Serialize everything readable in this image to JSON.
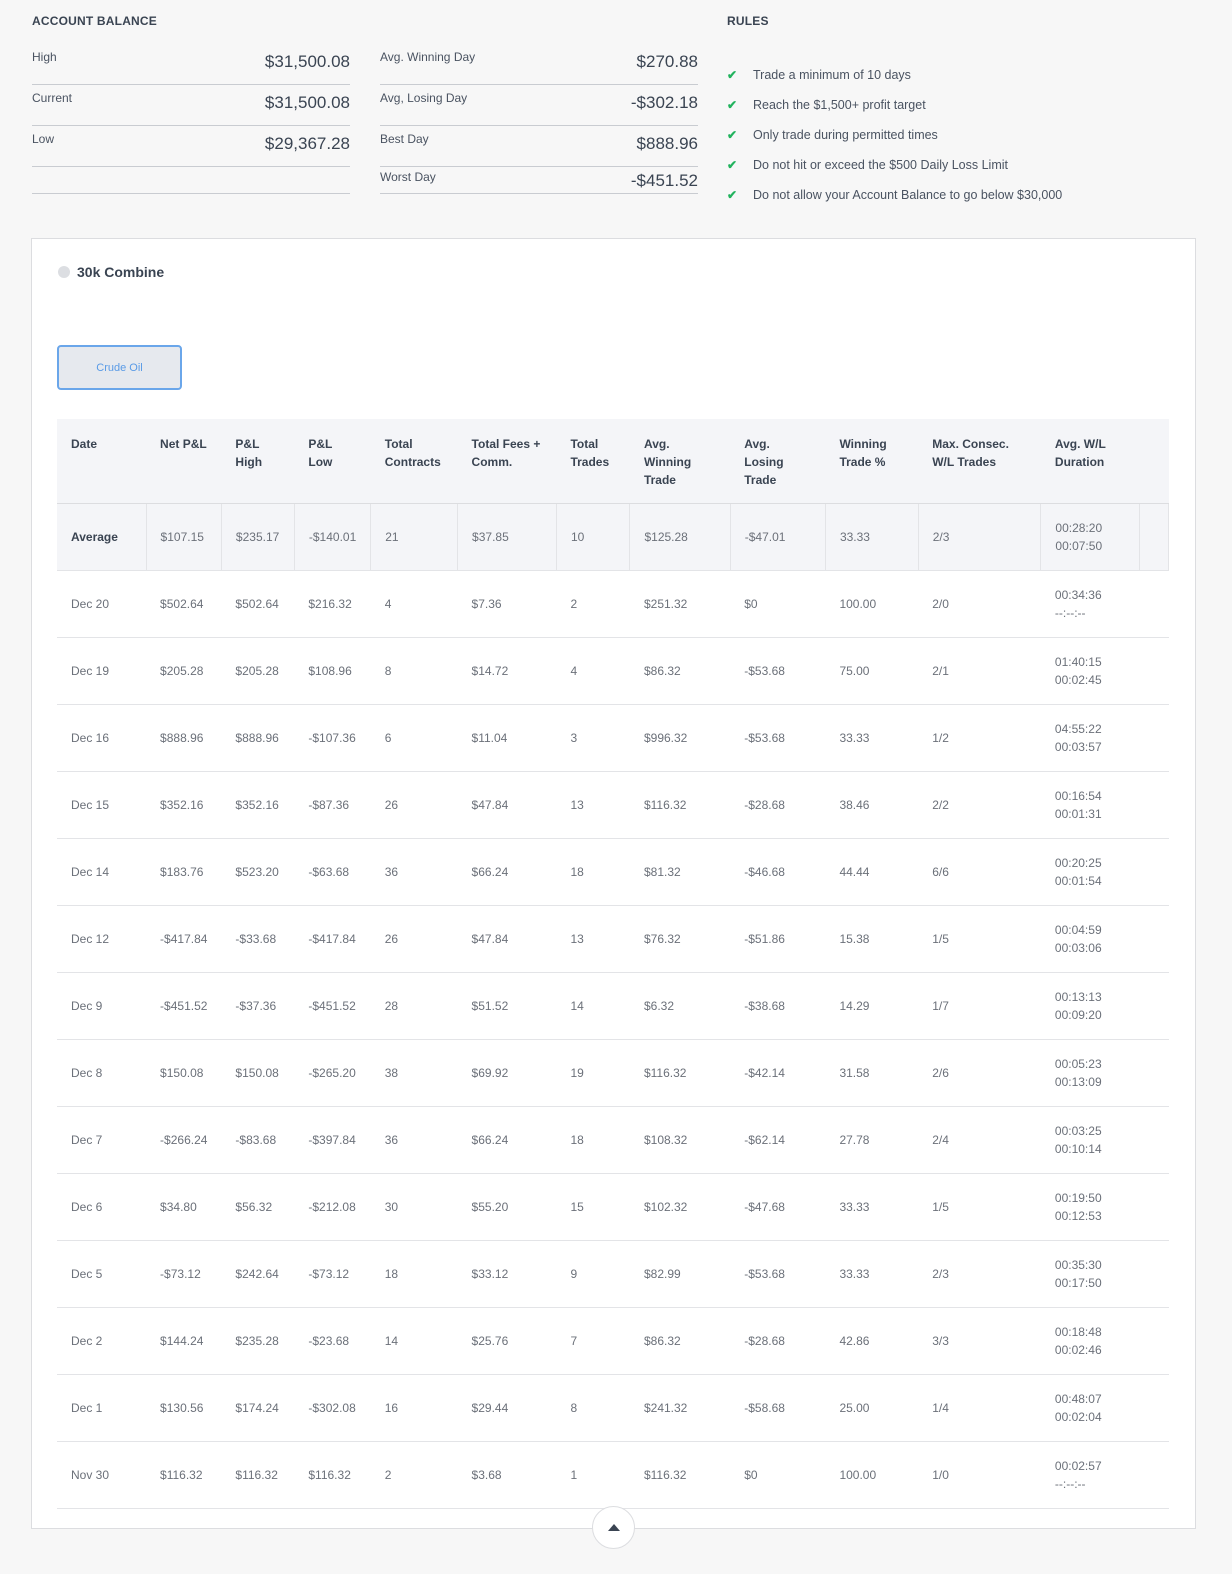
{
  "balance": {
    "title": "ACCOUNT BALANCE",
    "left": [
      {
        "label": "High",
        "value": "$31,500.08"
      },
      {
        "label": "Current",
        "value": "$31,500.08"
      },
      {
        "label": "Low",
        "value": "$29,367.28"
      }
    ],
    "right": [
      {
        "label": "Avg. Winning Day",
        "value": "$270.88"
      },
      {
        "label": "Avg, Losing Day",
        "value": "-$302.18"
      },
      {
        "label": "Best Day",
        "value": "$888.96"
      },
      {
        "label": "Worst Day",
        "value": "-$451.52"
      }
    ]
  },
  "rules": {
    "title": "RULES",
    "check_color": "#22b35e",
    "items": [
      "Trade a minimum of 10 days",
      "Reach the $1,500+ profit target",
      "Only trade during permitted times",
      "Do not hit or exceed the $500 Daily Loss Limit",
      "Do not allow your Account Balance to go below $30,000"
    ]
  },
  "account": {
    "name": "30k Combine",
    "tab": "Crude Oil"
  },
  "table": {
    "headers": [
      [
        "Date"
      ],
      [
        "Net P&L"
      ],
      [
        "P&L",
        "High"
      ],
      [
        "P&L",
        "Low"
      ],
      [
        "Total",
        "Contracts"
      ],
      [
        "Total Fees +",
        "Comm."
      ],
      [
        "Total",
        "Trades"
      ],
      [
        "Avg.",
        "Winning",
        "Trade"
      ],
      [
        "Avg. Losing",
        "Trade"
      ],
      [
        "Winning",
        "Trade %"
      ],
      [
        "Max. Consec.",
        "W/L Trades"
      ],
      [
        "Avg. W/L",
        "Duration"
      ]
    ],
    "average": [
      "Average",
      "$107.15",
      "$235.17",
      "-$140.01",
      "21",
      "$37.85",
      "10",
      "$125.28",
      "-$47.01",
      "33.33",
      "2/3",
      "00:28:20",
      "00:07:50"
    ],
    "rows": [
      [
        "Dec 20",
        "$502.64",
        "$502.64",
        "$216.32",
        "4",
        "$7.36",
        "2",
        "$251.32",
        "$0",
        "100.00",
        "2/0",
        "00:34:36",
        "--:--:--"
      ],
      [
        "Dec 19",
        "$205.28",
        "$205.28",
        "$108.96",
        "8",
        "$14.72",
        "4",
        "$86.32",
        "-$53.68",
        "75.00",
        "2/1",
        "01:40:15",
        "00:02:45"
      ],
      [
        "Dec 16",
        "$888.96",
        "$888.96",
        "-$107.36",
        "6",
        "$11.04",
        "3",
        "$996.32",
        "-$53.68",
        "33.33",
        "1/2",
        "04:55:22",
        "00:03:57"
      ],
      [
        "Dec 15",
        "$352.16",
        "$352.16",
        "-$87.36",
        "26",
        "$47.84",
        "13",
        "$116.32",
        "-$28.68",
        "38.46",
        "2/2",
        "00:16:54",
        "00:01:31"
      ],
      [
        "Dec 14",
        "$183.76",
        "$523.20",
        "-$63.68",
        "36",
        "$66.24",
        "18",
        "$81.32",
        "-$46.68",
        "44.44",
        "6/6",
        "00:20:25",
        "00:01:54"
      ],
      [
        "Dec 12",
        "-$417.84",
        "-$33.68",
        "-$417.84",
        "26",
        "$47.84",
        "13",
        "$76.32",
        "-$51.86",
        "15.38",
        "1/5",
        "00:04:59",
        "00:03:06"
      ],
      [
        "Dec 9",
        "-$451.52",
        "-$37.36",
        "-$451.52",
        "28",
        "$51.52",
        "14",
        "$6.32",
        "-$38.68",
        "14.29",
        "1/7",
        "00:13:13",
        "00:09:20"
      ],
      [
        "Dec 8",
        "$150.08",
        "$150.08",
        "-$265.20",
        "38",
        "$69.92",
        "19",
        "$116.32",
        "-$42.14",
        "31.58",
        "2/6",
        "00:05:23",
        "00:13:09"
      ],
      [
        "Dec 7",
        "-$266.24",
        "-$83.68",
        "-$397.84",
        "36",
        "$66.24",
        "18",
        "$108.32",
        "-$62.14",
        "27.78",
        "2/4",
        "00:03:25",
        "00:10:14"
      ],
      [
        "Dec 6",
        "$34.80",
        "$56.32",
        "-$212.08",
        "30",
        "$55.20",
        "15",
        "$102.32",
        "-$47.68",
        "33.33",
        "1/5",
        "00:19:50",
        "00:12:53"
      ],
      [
        "Dec 5",
        "-$73.12",
        "$242.64",
        "-$73.12",
        "18",
        "$33.12",
        "9",
        "$82.99",
        "-$53.68",
        "33.33",
        "2/3",
        "00:35:30",
        "00:17:50"
      ],
      [
        "Dec 2",
        "$144.24",
        "$235.28",
        "-$23.68",
        "14",
        "$25.76",
        "7",
        "$86.32",
        "-$28.68",
        "42.86",
        "3/3",
        "00:18:48",
        "00:02:46"
      ],
      [
        "Dec 1",
        "$130.56",
        "$174.24",
        "-$302.08",
        "16",
        "$29.44",
        "8",
        "$241.32",
        "-$58.68",
        "25.00",
        "1/4",
        "00:48:07",
        "00:02:04"
      ],
      [
        "Nov 30",
        "$116.32",
        "$116.32",
        "$116.32",
        "2",
        "$3.68",
        "1",
        "$116.32",
        "$0",
        "100.00",
        "1/0",
        "00:02:57",
        "--:--:--"
      ]
    ]
  }
}
